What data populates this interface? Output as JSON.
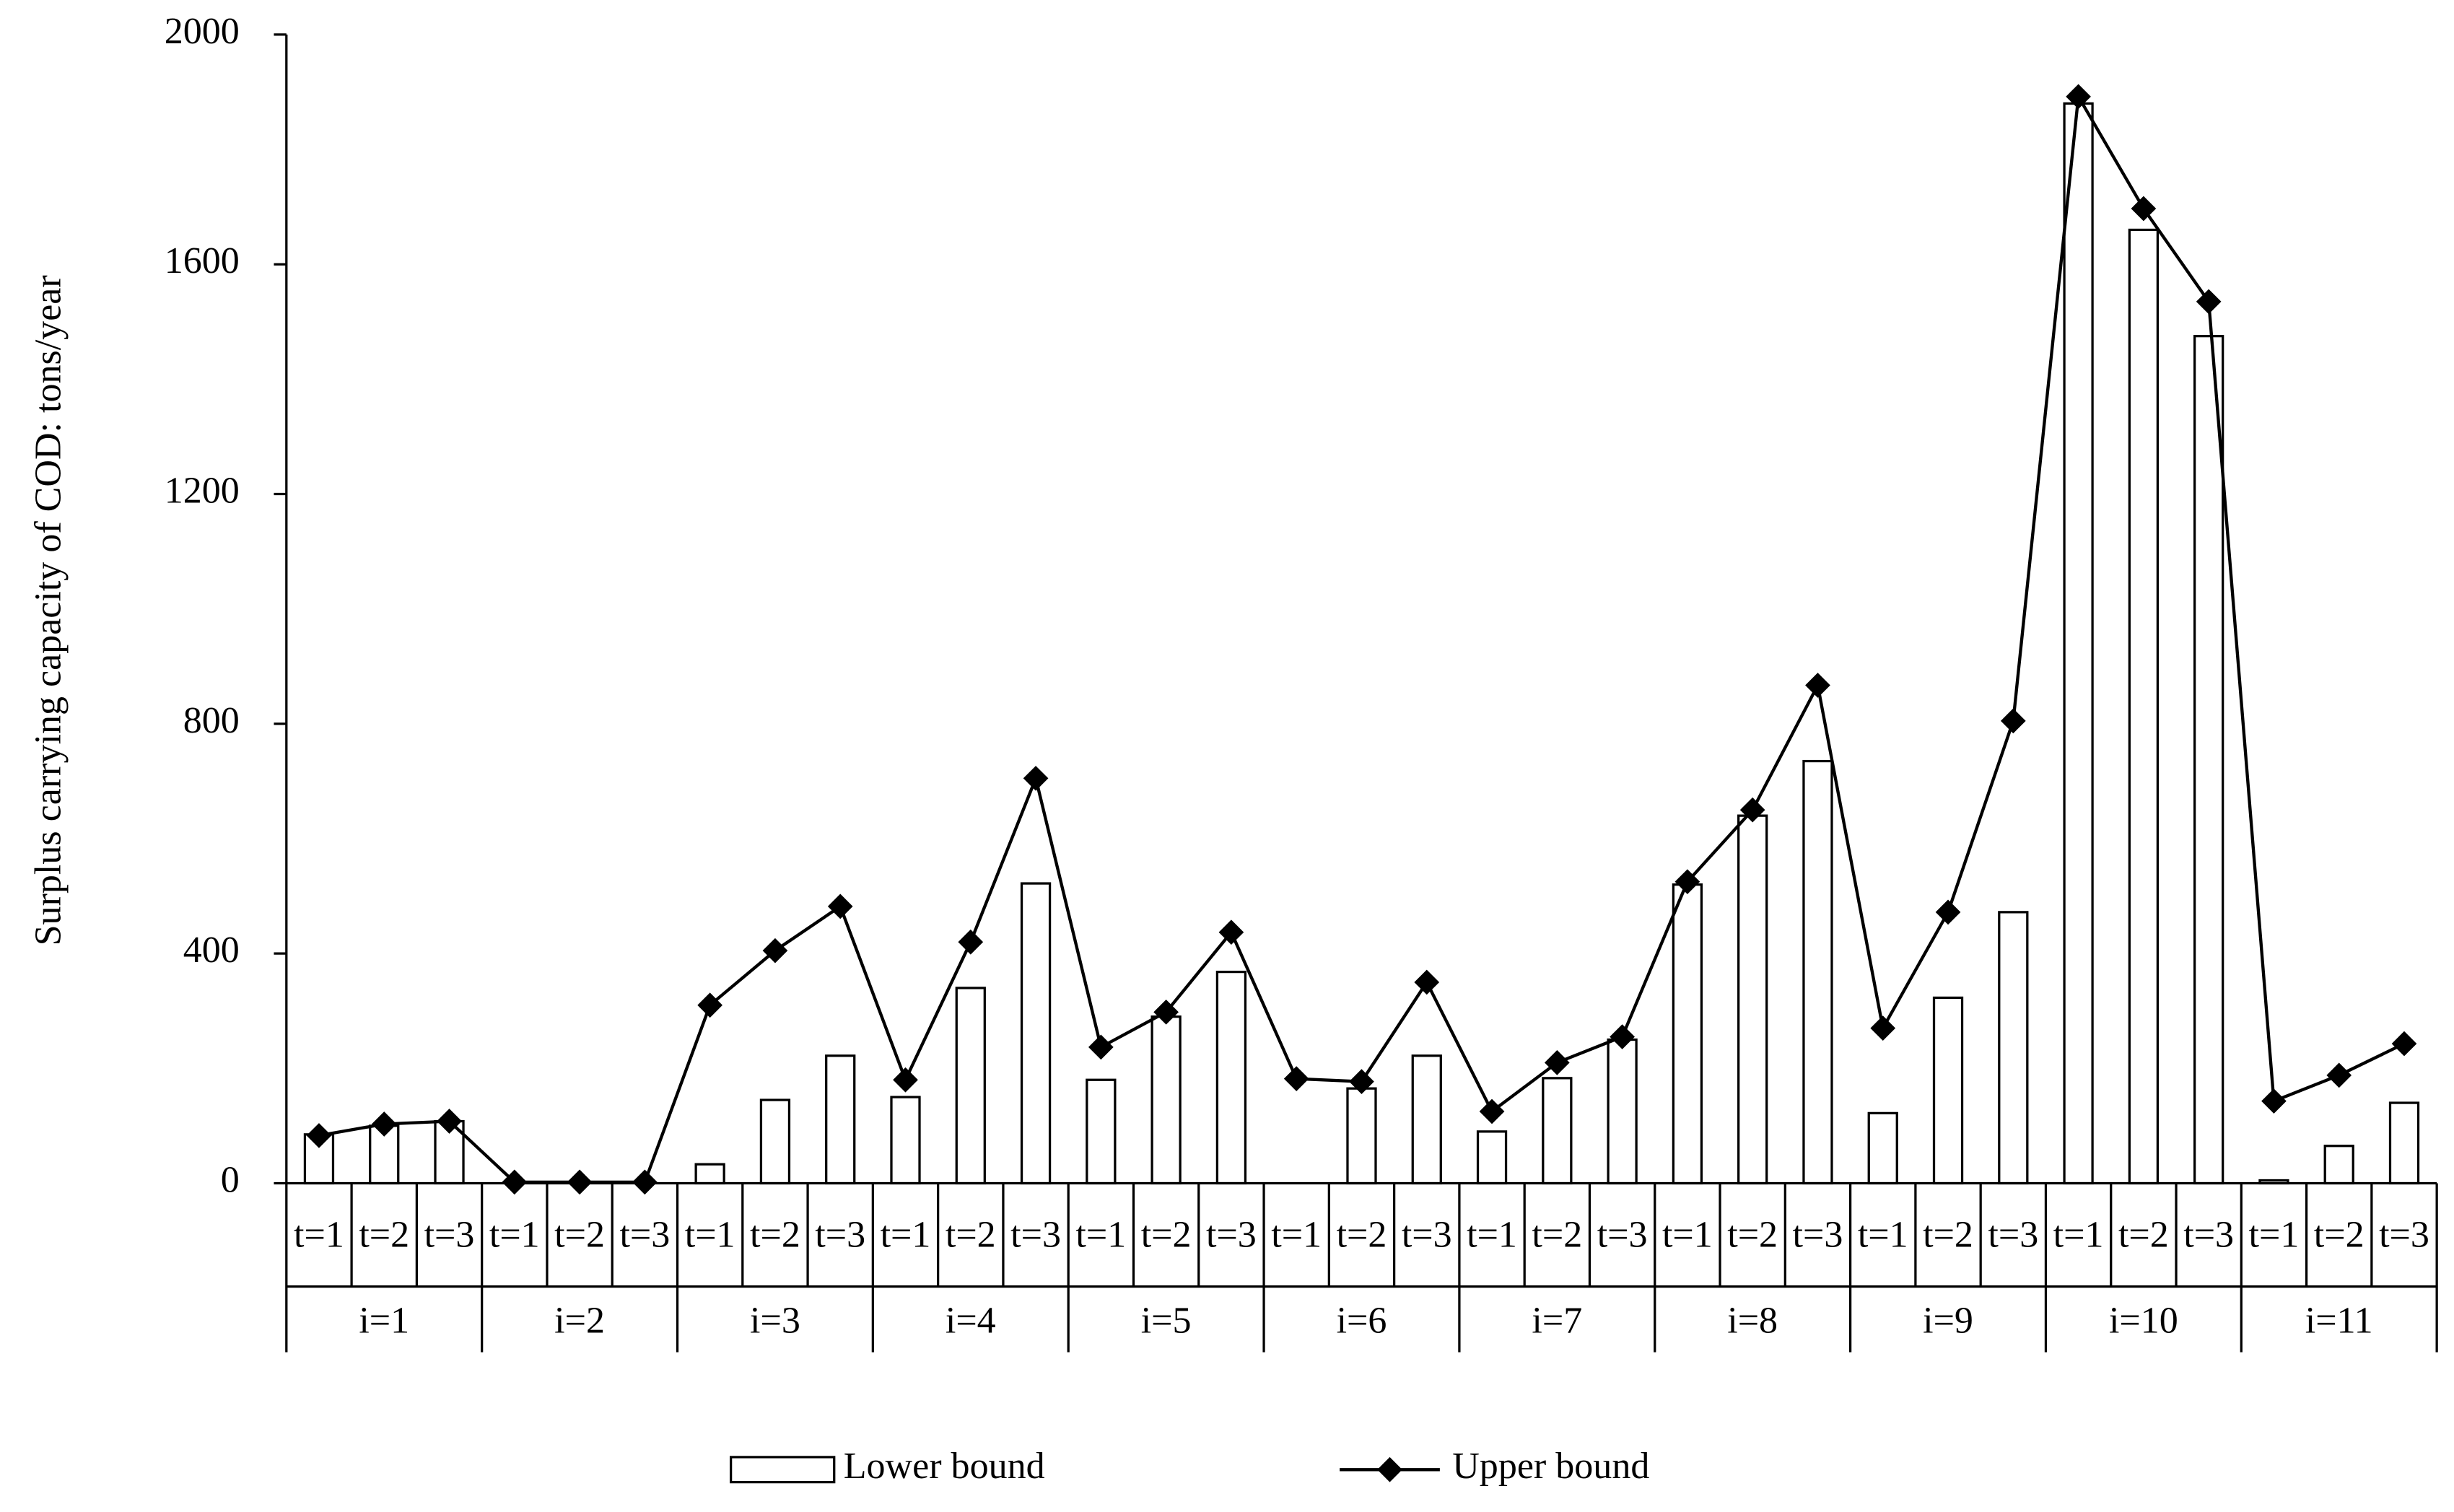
{
  "chart_data": {
    "type": "bar",
    "y_label": "Surplus  carrying capacity of COD: tons/year",
    "categories": [
      "t=1",
      "t=2",
      "t=3",
      "t=1",
      "t=2",
      "t=3",
      "t=1",
      "t=2",
      "t=3",
      "t=1",
      "t=2",
      "t=3",
      "t=1",
      "t=2",
      "t=3",
      "t=1",
      "t=2",
      "t=3",
      "t=1",
      "t=2",
      "t=3",
      "t=1",
      "t=2",
      "t=3",
      "t=1",
      "t=2",
      "t=3",
      "t=1",
      "t=2",
      "t=3",
      "t=1",
      "t=2",
      "t=3"
    ],
    "groups": [
      "i=1",
      "i=2",
      "i=3",
      "i=4",
      "i=5",
      "i=6",
      "i=7",
      "i=8",
      "i=9",
      "i=10",
      "i=11"
    ],
    "series": [
      {
        "name": "Lower bound",
        "type": "bar",
        "color": "#ffffff",
        "values": [
          85,
          100,
          108,
          0,
          0,
          0,
          33,
          145,
          222,
          150,
          340,
          522,
          180,
          290,
          368,
          0,
          165,
          222,
          90,
          183,
          250,
          520,
          640,
          735,
          122,
          323,
          472,
          1880,
          1660,
          1475,
          5,
          65,
          140
        ]
      },
      {
        "name": "Upper bound",
        "type": "line",
        "color": "#000000",
        "values": [
          83,
          103,
          108,
          2,
          2,
          2,
          310,
          405,
          482,
          180,
          420,
          705,
          237,
          298,
          437,
          182,
          177,
          350,
          125,
          210,
          255,
          525,
          650,
          867,
          270,
          472,
          805,
          1892,
          1697,
          1535,
          143,
          188,
          243
        ]
      }
    ],
    "ylim": [
      0,
      2000
    ],
    "yticks": [
      0,
      400,
      800,
      1200,
      1600,
      2000
    ]
  }
}
